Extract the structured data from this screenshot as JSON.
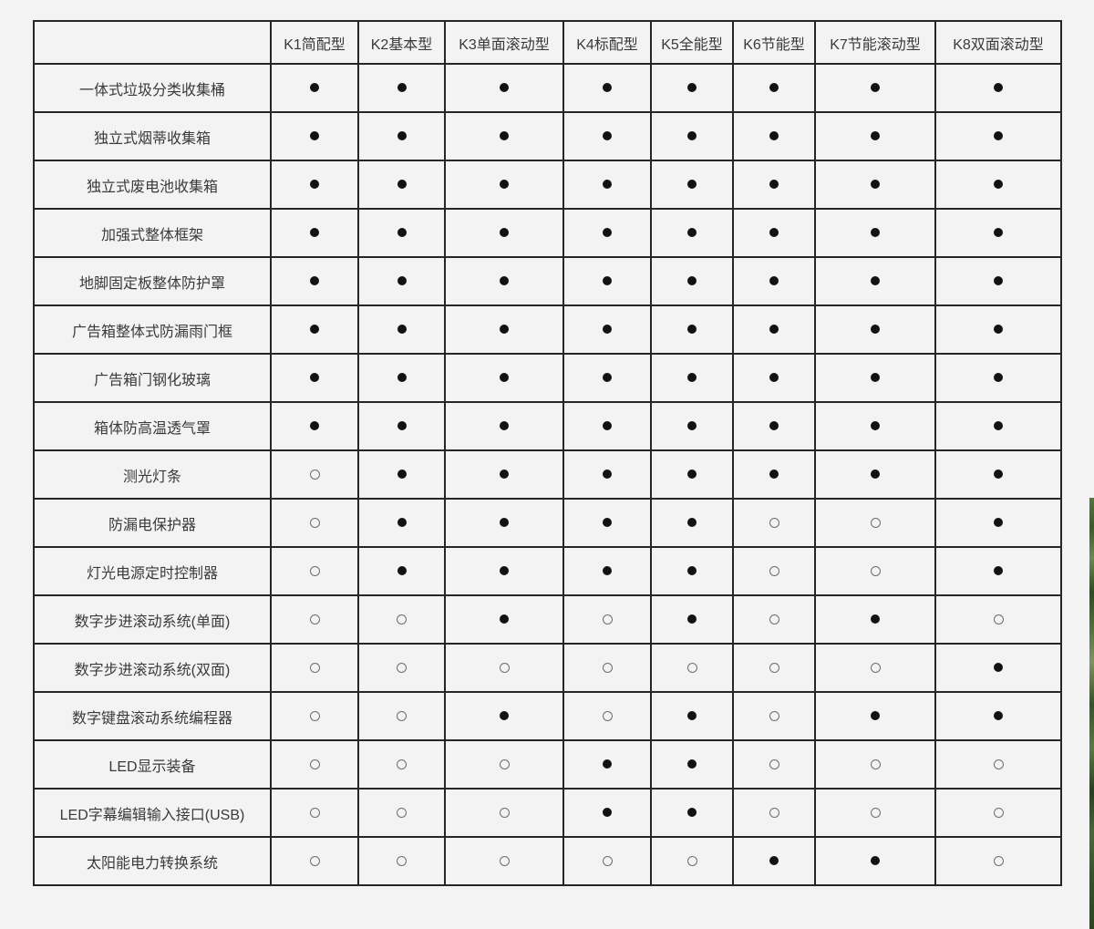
{
  "page": {
    "background_color": "#f3f3f3",
    "border_color": "#262626",
    "text_color": "#3a3a3a",
    "filled_dot_color": "#121212",
    "empty_dot_stroke_color": "#6e6e6e"
  },
  "table": {
    "corner_label": "",
    "columns": [
      "K1简配型",
      "K2基本型",
      "K3单面滚动型",
      "K4标配型",
      "K5全能型",
      "K6节能型",
      "K7节能滚动型",
      "K8双面滚动型"
    ],
    "symbols": {
      "filled": "●",
      "empty": "○"
    },
    "rows": [
      {
        "label": "一体式垃圾分类收集桶",
        "values": [
          1,
          1,
          1,
          1,
          1,
          1,
          1,
          1
        ]
      },
      {
        "label": "独立式烟蒂收集箱",
        "values": [
          1,
          1,
          1,
          1,
          1,
          1,
          1,
          1
        ]
      },
      {
        "label": "独立式废电池收集箱",
        "values": [
          1,
          1,
          1,
          1,
          1,
          1,
          1,
          1
        ]
      },
      {
        "label": "加强式整体框架",
        "values": [
          1,
          1,
          1,
          1,
          1,
          1,
          1,
          1
        ]
      },
      {
        "label": "地脚固定板整体防护罩",
        "values": [
          1,
          1,
          1,
          1,
          1,
          1,
          1,
          1
        ]
      },
      {
        "label": "广告箱整体式防漏雨门框",
        "values": [
          1,
          1,
          1,
          1,
          1,
          1,
          1,
          1
        ]
      },
      {
        "label": "广告箱门钢化玻璃",
        "values": [
          1,
          1,
          1,
          1,
          1,
          1,
          1,
          1
        ]
      },
      {
        "label": "箱体防高温透气罩",
        "values": [
          1,
          1,
          1,
          1,
          1,
          1,
          1,
          1
        ]
      },
      {
        "label": "测光灯条",
        "values": [
          0,
          1,
          1,
          1,
          1,
          1,
          1,
          1
        ]
      },
      {
        "label": "防漏电保护器",
        "values": [
          0,
          1,
          1,
          1,
          1,
          0,
          0,
          1
        ]
      },
      {
        "label": "灯光电源定时控制器",
        "values": [
          0,
          1,
          1,
          1,
          1,
          0,
          0,
          1
        ]
      },
      {
        "label": "数字步进滚动系统(单面)",
        "values": [
          0,
          0,
          1,
          0,
          1,
          0,
          1,
          0
        ]
      },
      {
        "label": "数字步进滚动系统(双面)",
        "values": [
          0,
          0,
          0,
          0,
          0,
          0,
          0,
          1
        ]
      },
      {
        "label": "数字键盘滚动系统编程器",
        "values": [
          0,
          0,
          1,
          0,
          1,
          0,
          1,
          1
        ]
      },
      {
        "label": "LED显示装备",
        "values": [
          0,
          0,
          0,
          1,
          1,
          0,
          0,
          0
        ]
      },
      {
        "label": "LED字幕编辑输入接口(USB)",
        "values": [
          0,
          0,
          0,
          1,
          1,
          0,
          0,
          0
        ]
      },
      {
        "label": "太阳能电力转换系统",
        "values": [
          0,
          0,
          0,
          0,
          0,
          1,
          1,
          0
        ]
      }
    ]
  },
  "decoration": {
    "right_edge_photo_sliver_colors": [
      "#56743f",
      "#3c5a2c",
      "#6b8a52",
      "#2f4a22",
      "#4e6f3c",
      "#81925f",
      "#35522a",
      "#293f1f"
    ]
  }
}
